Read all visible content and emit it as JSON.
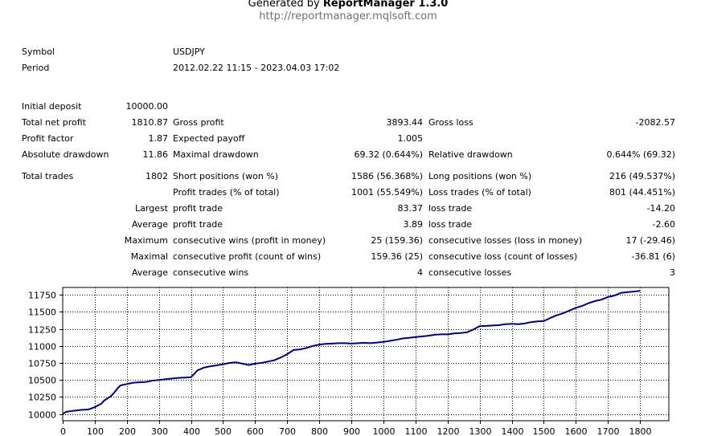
{
  "header": {
    "generated_prefix": "Generated by ",
    "generator": "ReportManager 1.3.0",
    "url": "http://reportmanager.mqlsoft.com"
  },
  "info": {
    "symbol_label": "Symbol",
    "symbol_value": "USDJPY",
    "period_label": "Period",
    "period_value": "2012.02.22 11:15 - 2023.04.03 17:02"
  },
  "stats": {
    "initial_deposit_label": "Initial deposit",
    "initial_deposit_value": "10000.00",
    "total_net_profit_label": "Total net profit",
    "total_net_profit_value": "1810.87",
    "gross_profit_label": "Gross profit",
    "gross_profit_value": "3893.44",
    "gross_loss_label": "Gross loss",
    "gross_loss_value": "-2082.57",
    "profit_factor_label": "Profit factor",
    "profit_factor_value": "1.87",
    "expected_payoff_label": "Expected payoff",
    "expected_payoff_value": "1.005",
    "absolute_drawdown_label": "Absolute drawdown",
    "absolute_drawdown_value": "11.86",
    "maximal_drawdown_label": "Maximal drawdown",
    "maximal_drawdown_value": "69.32 (0.644%)",
    "relative_drawdown_label": "Relative drawdown",
    "relative_drawdown_value": "0.644% (69.32)",
    "total_trades_label": "Total trades",
    "total_trades_value": "1802",
    "short_positions_label": "Short positions (won %)",
    "short_positions_value": "1586 (56.368%)",
    "long_positions_label": "Long positions (won %)",
    "long_positions_value": "216 (49.537%)",
    "profit_trades_label": "Profit trades (% of total)",
    "profit_trades_value": "1001 (55.549%)",
    "loss_trades_label": "Loss trades (% of total)",
    "loss_trades_value": "801 (44.451%)",
    "largest_label": "Largest",
    "largest_profit_label": "profit trade",
    "largest_profit_value": "83.37",
    "largest_loss_label": "loss trade",
    "largest_loss_value": "-14.20",
    "average_label": "Average",
    "average_profit_label": "profit trade",
    "average_profit_value": "3.89",
    "average_loss_label": "loss trade",
    "average_loss_value": "-2.60",
    "maximum_label": "Maximum",
    "max_consec_wins_label": "consecutive wins (profit in money)",
    "max_consec_wins_value": "25 (159.36)",
    "max_consec_losses_label": "consecutive losses (loss in money)",
    "max_consec_losses_value": "17 (-29.46)",
    "maximal_label": "Maximal",
    "maximal_consec_profit_label": "consecutive profit (count of wins)",
    "maximal_consec_profit_value": "159.36 (25)",
    "maximal_consec_loss_label": "consecutive loss (count of losses)",
    "maximal_consec_loss_value": "-36.81 (6)",
    "average2_label": "Average",
    "avg_consec_wins_label": "consecutive wins",
    "avg_consec_wins_value": "4",
    "avg_consec_losses_label": "consecutive losses",
    "avg_consec_losses_value": "3"
  },
  "chart_data": {
    "type": "line",
    "line_color": "#00007f",
    "grid": true,
    "xlim": [
      0,
      1890
    ],
    "ylim": [
      9900,
      11860
    ],
    "x_ticks": [
      0,
      100,
      200,
      300,
      400,
      500,
      600,
      700,
      800,
      900,
      1000,
      1100,
      1200,
      1300,
      1400,
      1500,
      1600,
      1700,
      1800
    ],
    "y_ticks": [
      10000,
      10250,
      10500,
      10750,
      11000,
      11250,
      11500,
      11750
    ],
    "series": [
      {
        "x": [
          0,
          10,
          30,
          60,
          80,
          100,
          120,
          130,
          140,
          150,
          160,
          170,
          180,
          200,
          220,
          240,
          260,
          280,
          300,
          320,
          340,
          360,
          380,
          400,
          420,
          440,
          460,
          480,
          500,
          520,
          540,
          560,
          580,
          600,
          620,
          640,
          660,
          680,
          700,
          720,
          740,
          760,
          780,
          800,
          820,
          840,
          860,
          880,
          900,
          920,
          940,
          960,
          980,
          1000,
          1020,
          1040,
          1060,
          1080,
          1100,
          1120,
          1140,
          1160,
          1180,
          1200,
          1220,
          1240,
          1260,
          1280,
          1300,
          1320,
          1340,
          1360,
          1380,
          1400,
          1420,
          1440,
          1460,
          1480,
          1500,
          1520,
          1540,
          1560,
          1580,
          1600,
          1620,
          1640,
          1660,
          1680,
          1700,
          1720,
          1740,
          1760,
          1780,
          1800
        ],
        "y": [
          10000,
          10030,
          10045,
          10060,
          10065,
          10100,
          10150,
          10200,
          10230,
          10260,
          10310,
          10370,
          10420,
          10440,
          10460,
          10465,
          10470,
          10490,
          10500,
          10510,
          10520,
          10530,
          10535,
          10540,
          10640,
          10680,
          10700,
          10715,
          10730,
          10750,
          10760,
          10740,
          10720,
          10740,
          10750,
          10770,
          10790,
          10830,
          10880,
          10940,
          10950,
          10970,
          11000,
          11020,
          11030,
          11035,
          11040,
          11040,
          11035,
          11040,
          11045,
          11040,
          11050,
          11060,
          11075,
          11090,
          11110,
          11120,
          11130,
          11140,
          11150,
          11165,
          11170,
          11170,
          11185,
          11190,
          11200,
          11240,
          11290,
          11295,
          11300,
          11305,
          11320,
          11325,
          11320,
          11330,
          11350,
          11360,
          11365,
          11410,
          11450,
          11480,
          11520,
          11560,
          11590,
          11630,
          11660,
          11680,
          11720,
          11740,
          11780,
          11790,
          11800,
          11810
        ]
      }
    ]
  }
}
